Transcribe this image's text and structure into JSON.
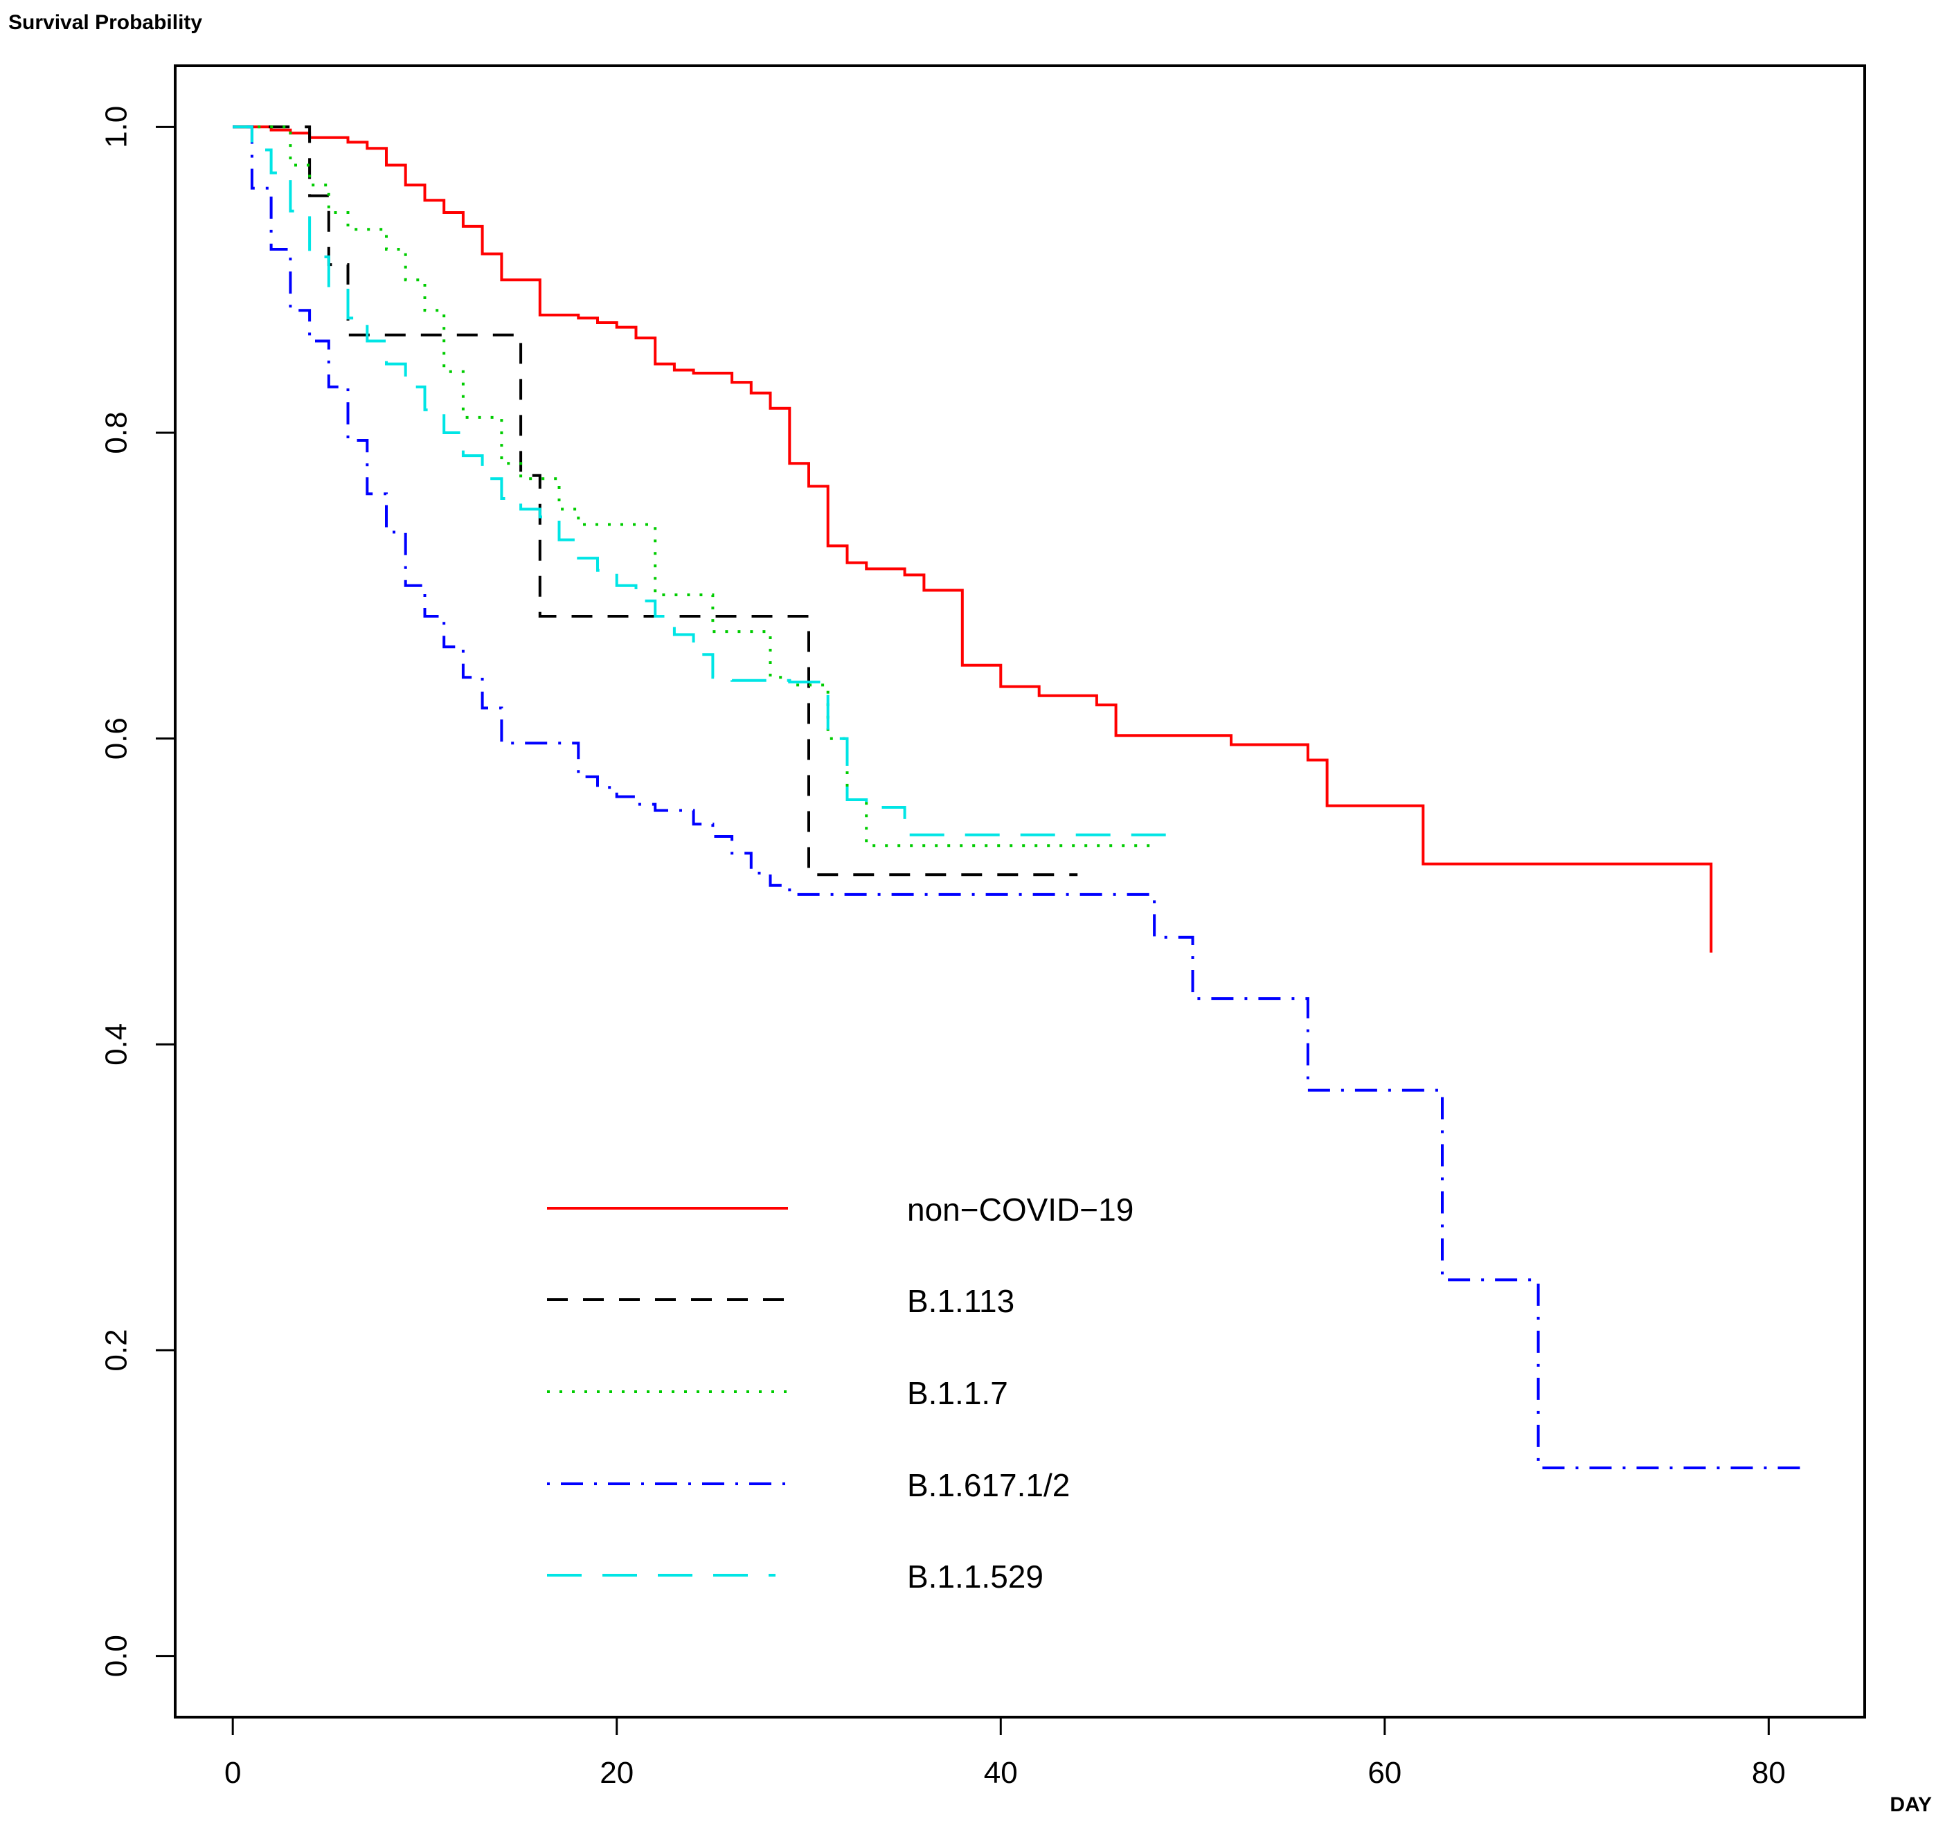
{
  "chart_data": {
    "type": "line",
    "step": true,
    "title": "",
    "ylabel": "Survival Probability",
    "xlabel": "DAY",
    "xlim": [
      -3,
      85
    ],
    "ylim": [
      -0.04,
      1.04
    ],
    "xticks": [
      0,
      20,
      40,
      60,
      80
    ],
    "yticks": [
      0.0,
      0.2,
      0.4,
      0.6,
      0.8,
      1.0
    ],
    "xtick_labels": [
      "0",
      "20",
      "40",
      "60",
      "80"
    ],
    "ytick_labels": [
      "0.0",
      "0.2",
      "0.4",
      "0.6",
      "0.8",
      "1.0"
    ],
    "grid": false,
    "legend_position": "lower-center",
    "series": [
      {
        "name": "non−COVID−19",
        "color": "#ff0000",
        "dash": "solid",
        "x": [
          0,
          2,
          3,
          4,
          6,
          7,
          8,
          9,
          10,
          11,
          12,
          13,
          14,
          16,
          18,
          19,
          20,
          21,
          22,
          23,
          24,
          26,
          27,
          28,
          29,
          30,
          31,
          32,
          33,
          35,
          36,
          38,
          40,
          42,
          45,
          46,
          52,
          56,
          57,
          62,
          77
        ],
        "y": [
          1.0,
          0.998,
          0.996,
          0.993,
          0.99,
          0.986,
          0.975,
          0.962,
          0.952,
          0.944,
          0.935,
          0.917,
          0.9,
          0.877,
          0.875,
          0.872,
          0.869,
          0.862,
          0.845,
          0.841,
          0.839,
          0.833,
          0.826,
          0.816,
          0.78,
          0.765,
          0.726,
          0.715,
          0.711,
          0.707,
          0.697,
          0.648,
          0.634,
          0.628,
          0.622,
          0.602,
          0.596,
          0.586,
          0.556,
          0.518,
          0.46
        ]
      },
      {
        "name": "B.1.113",
        "color": "#000000",
        "dash": "dashed",
        "x": [
          0,
          4,
          5,
          6,
          15,
          16,
          30,
          44
        ],
        "y": [
          1.0,
          0.955,
          0.91,
          0.864,
          0.772,
          0.68,
          0.511,
          0.511
        ]
      },
      {
        "name": "B.1.1.7",
        "color": "#00cc00",
        "dash": "dotted",
        "x": [
          0,
          3,
          4,
          5,
          6,
          8,
          9,
          10,
          11,
          12,
          14,
          15,
          17,
          18,
          22,
          25,
          28,
          29,
          31,
          32,
          33,
          48
        ],
        "y": [
          1.0,
          0.975,
          0.962,
          0.944,
          0.933,
          0.92,
          0.9,
          0.88,
          0.84,
          0.81,
          0.78,
          0.77,
          0.75,
          0.74,
          0.694,
          0.67,
          0.64,
          0.635,
          0.6,
          0.56,
          0.53,
          0.53
        ]
      },
      {
        "name": "B.1.617.1/2",
        "color": "#0000ff",
        "dash": "dashdot",
        "x": [
          0,
          1,
          2,
          3,
          4,
          5,
          6,
          7,
          8,
          9,
          10,
          11,
          12,
          13,
          14,
          18,
          19,
          20,
          21,
          22,
          24,
          25,
          26,
          27,
          28,
          29,
          48,
          50,
          56,
          63,
          68,
          82
        ],
        "y": [
          1.0,
          0.96,
          0.92,
          0.88,
          0.86,
          0.83,
          0.795,
          0.76,
          0.735,
          0.7,
          0.68,
          0.66,
          0.64,
          0.62,
          0.597,
          0.575,
          0.568,
          0.562,
          0.557,
          0.553,
          0.544,
          0.536,
          0.525,
          0.512,
          0.504,
          0.498,
          0.47,
          0.43,
          0.37,
          0.246,
          0.123,
          0.123
        ]
      },
      {
        "name": "B.1.1.529",
        "color": "#00e5e5",
        "dash": "longdash",
        "x": [
          0,
          1,
          2,
          3,
          4,
          5,
          6,
          7,
          8,
          9,
          10,
          11,
          12,
          13,
          14,
          15,
          16,
          17,
          18,
          19,
          20,
          21,
          22,
          23,
          24,
          25,
          26,
          28,
          29,
          31,
          32,
          33,
          35,
          49
        ],
        "y": [
          1.0,
          0.985,
          0.97,
          0.945,
          0.915,
          0.895,
          0.875,
          0.86,
          0.845,
          0.83,
          0.815,
          0.8,
          0.785,
          0.77,
          0.757,
          0.75,
          0.745,
          0.73,
          0.718,
          0.71,
          0.7,
          0.69,
          0.68,
          0.668,
          0.655,
          0.64,
          0.638,
          0.638,
          0.637,
          0.6,
          0.56,
          0.555,
          0.537,
          0.537
        ]
      }
    ]
  }
}
